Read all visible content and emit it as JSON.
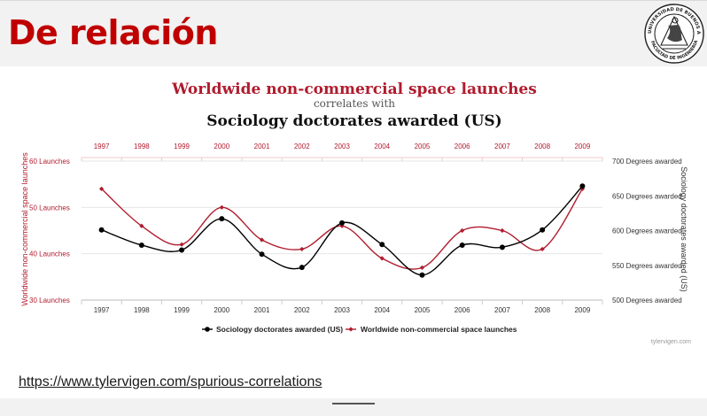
{
  "slide": {
    "title": "De relación",
    "link": "https://www.tylervigen.com/spurious-correlations"
  },
  "logo": {
    "ring_top_text": "UNIVERSIDAD DE BUENOS AIRES",
    "ring_bottom_text": "FACULTAD DE INGENIERIA",
    "icon": "university-seal-icon"
  },
  "chart_data": {
    "type": "line",
    "title_line1": "Worldwide non-commercial space launches",
    "title_line2": "correlates with",
    "title_line3": "Sociology doctorates awarded (US)",
    "categories": [
      "1997",
      "1998",
      "1999",
      "2000",
      "2001",
      "2002",
      "2003",
      "2004",
      "2005",
      "2006",
      "2007",
      "2008",
      "2009"
    ],
    "left_axis": {
      "label": "Worldwide non-commercial space launches",
      "ticks": [
        "30 Launches",
        "40 Launches",
        "50 Launches",
        "60 Launches"
      ],
      "tick_values": [
        30,
        40,
        50,
        60
      ],
      "range": [
        30,
        60
      ],
      "color": "#b01c2e"
    },
    "right_axis": {
      "label": "Sociology doctorates awarded (US)",
      "ticks": [
        "500 Degrees awarded",
        "550 Degrees awarded",
        "600 Degrees awarded",
        "650 Degrees awarded",
        "700 Degrees awarded"
      ],
      "tick_values": [
        500,
        550,
        600,
        650,
        700
      ],
      "range": [
        500,
        700
      ],
      "color": "#333333"
    },
    "series": [
      {
        "name": "Sociology doctorates awarded (US)",
        "axis": "right",
        "color": "#000000",
        "values": [
          601,
          579,
          572,
          617,
          566,
          547,
          611,
          580,
          536,
          579,
          576,
          601,
          664
        ]
      },
      {
        "name": "Worldwide non-commercial space launches",
        "axis": "left",
        "color": "#b01c2e",
        "values": [
          54,
          46,
          42,
          50,
          43,
          41,
          46,
          39,
          37,
          45,
          45,
          41,
          54
        ]
      }
    ],
    "legend_position": "bottom",
    "grid": true,
    "watermark": "tylervigen.com"
  },
  "colors": {
    "title_red": "#c00000",
    "chart_red": "#b01c2e",
    "header_bg": "#f2f2f2"
  }
}
